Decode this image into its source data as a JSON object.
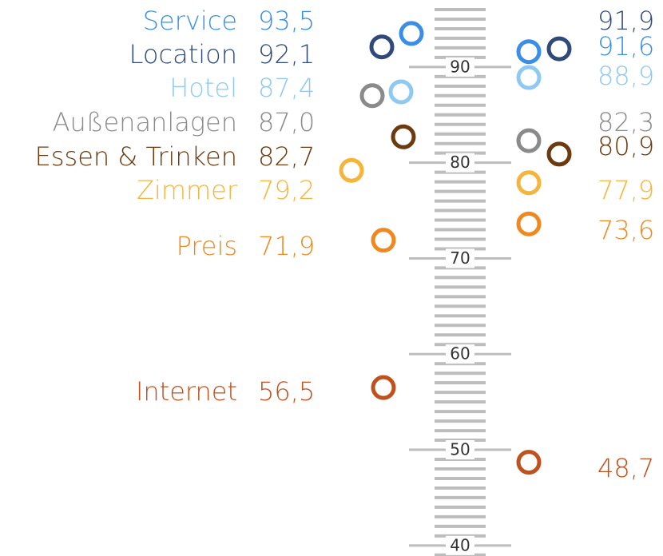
{
  "chart_data": {
    "type": "dot",
    "categories": [
      "Service",
      "Location",
      "Hotel",
      "Außenanlagen",
      "Essen & Trinken",
      "Zimmer",
      "Preis",
      "Internet"
    ],
    "colors": [
      "#3a8ee6",
      "#2f4a7a",
      "#8ec9f2",
      "#8a8a8a",
      "#6b3a0e",
      "#f6b43a",
      "#f0881e",
      "#c0501c"
    ],
    "series": [
      {
        "values": [
          93.5,
          92.1,
          87.4,
          87.0,
          82.7,
          79.2,
          71.9,
          56.5
        ],
        "value_labels": [
          "93,5",
          "92,1",
          "87,4",
          "87,0",
          "82,7",
          "79,2",
          "71,9",
          "56,5"
        ]
      },
      {
        "values": [
          91.6,
          91.9,
          88.9,
          82.3,
          80.9,
          77.9,
          73.6,
          48.7
        ],
        "value_labels": [
          "91,6",
          "91,9",
          "88,9",
          "82,3",
          "80,9",
          "77,9",
          "73,6",
          "48,7"
        ]
      }
    ],
    "ylim": [
      38.9,
      97
    ],
    "yticks": [
      40,
      50,
      60,
      70,
      80,
      90
    ],
    "minor_yticks": [
      39,
      41,
      42,
      43,
      44,
      45,
      46,
      47,
      48,
      49,
      51,
      52,
      53,
      54,
      55,
      56,
      57,
      58,
      59,
      61,
      62,
      63,
      64,
      65,
      66,
      67,
      68,
      69,
      71,
      72,
      73,
      74,
      75,
      76,
      77,
      78,
      79,
      81,
      82,
      83,
      84,
      85,
      86,
      87,
      88,
      89,
      91,
      92,
      93,
      94,
      95,
      96
    ]
  }
}
